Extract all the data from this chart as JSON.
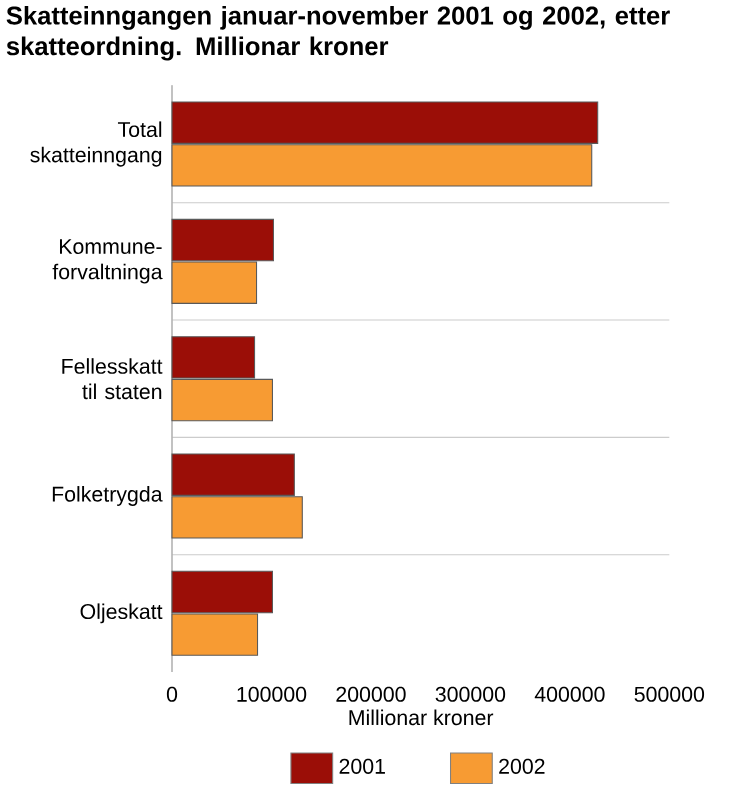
{
  "chart_data": {
    "type": "bar",
    "orientation": "horizontal",
    "title": "Skatteinngangen januar-november 2001 og 2002, etter skatteordning. Millionar kroner",
    "xlabel": "Millionar kroner",
    "categories": [
      "Total skatteinngang",
      "Kommune-forvaltninga",
      "Fellesskatt til staten",
      "Folketrygda",
      "Oljeskatt"
    ],
    "series": [
      {
        "name": "2001",
        "color": "#9b0e07",
        "values": [
          428000,
          102000,
          83000,
          123000,
          101000
        ]
      },
      {
        "name": "2002",
        "color": "#f79b33",
        "values": [
          422000,
          85000,
          101000,
          131000,
          86000
        ]
      }
    ],
    "xlim": [
      0,
      500000
    ],
    "xticks": [
      0,
      100000,
      200000,
      300000,
      400000,
      500000
    ],
    "grid": "y",
    "legend": "bottom"
  }
}
